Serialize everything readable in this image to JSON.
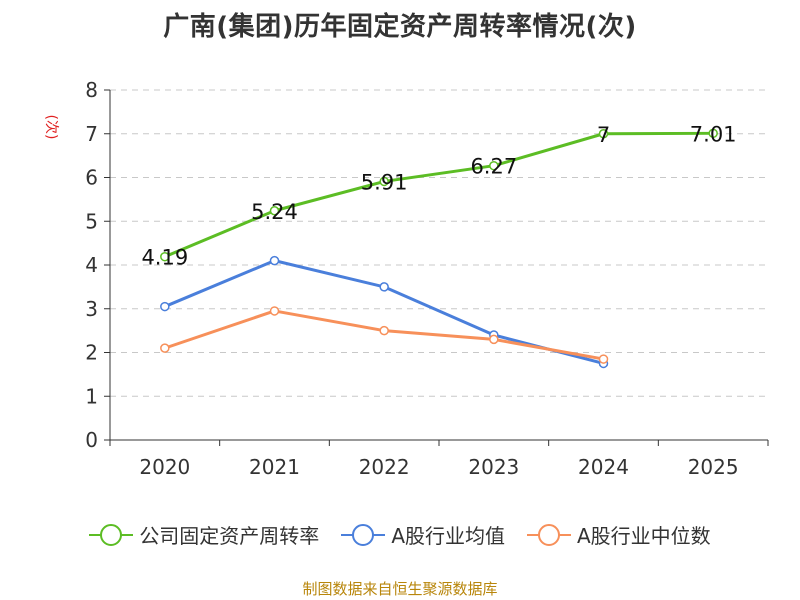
{
  "chart_data": {
    "type": "line",
    "title": "广南(集团)历年固定资产周转率情况(次)",
    "ylabel": "(次)",
    "xlabel": "",
    "categories": [
      "2020",
      "2021",
      "2022",
      "2023",
      "2024",
      "2025"
    ],
    "ylim": [
      0,
      8
    ],
    "yticks": [
      "0",
      "1",
      "2",
      "3",
      "4",
      "5",
      "6",
      "7",
      "8"
    ],
    "grid": true,
    "legend_position": "bottom",
    "series": [
      {
        "name": "公司固定资产周转率",
        "color": "#5cbd24",
        "values": [
          4.19,
          5.24,
          5.91,
          6.27,
          7,
          7.01
        ],
        "labels": [
          "4.19",
          "5.24",
          "5.91",
          "6.27",
          "7",
          "7.01"
        ]
      },
      {
        "name": "A股行业均值",
        "color": "#4a7fdb",
        "values": [
          3.05,
          4.1,
          3.5,
          2.4,
          1.75,
          null
        ]
      },
      {
        "name": "A股行业中位数",
        "color": "#f7905a",
        "values": [
          2.1,
          2.95,
          2.5,
          2.3,
          1.85,
          null
        ]
      }
    ]
  },
  "footer": "制图数据来自恒生聚源数据库"
}
